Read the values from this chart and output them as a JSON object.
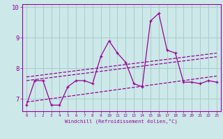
{
  "xlabel": "Windchill (Refroidissement éolien,°C)",
  "bg_color": "#cce8e8",
  "line_color": "#990099",
  "grid_color": "#aacccc",
  "xlim": [
    -0.5,
    23.5
  ],
  "ylim": [
    6.6,
    10.1
  ],
  "yticks": [
    7,
    8,
    9,
    10
  ],
  "xticks": [
    0,
    1,
    2,
    3,
    4,
    5,
    6,
    7,
    8,
    9,
    10,
    11,
    12,
    13,
    14,
    15,
    16,
    17,
    18,
    19,
    20,
    21,
    22,
    23
  ],
  "main_x": [
    0,
    1,
    2,
    3,
    4,
    5,
    6,
    7,
    8,
    9,
    10,
    11,
    12,
    13,
    14,
    15,
    16,
    17,
    18,
    19,
    20,
    21,
    22,
    23
  ],
  "main_y": [
    6.8,
    7.6,
    7.6,
    6.8,
    6.8,
    7.4,
    7.6,
    7.6,
    7.5,
    8.4,
    8.9,
    8.5,
    8.2,
    7.5,
    7.4,
    9.55,
    9.8,
    8.6,
    8.5,
    7.55,
    7.55,
    7.5,
    7.6,
    7.55
  ],
  "trend1_x": [
    0,
    23
  ],
  "trend1_y": [
    7.72,
    8.5
  ],
  "trend2_x": [
    0,
    23
  ],
  "trend2_y": [
    7.6,
    8.38
  ],
  "trend3_x": [
    0,
    23
  ],
  "trend3_y": [
    6.9,
    7.75
  ]
}
